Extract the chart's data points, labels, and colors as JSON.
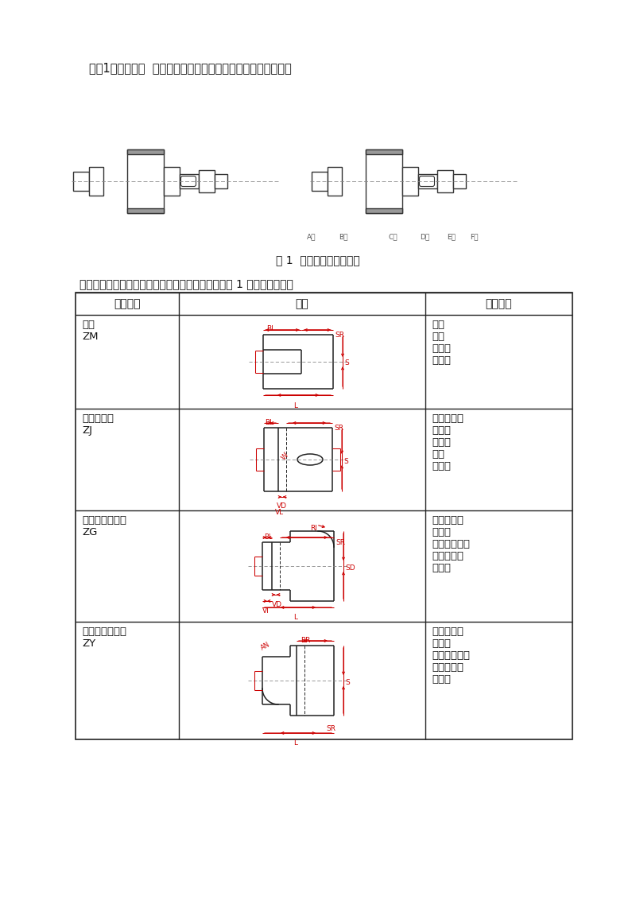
{
  "bg_color": "#ffffff",
  "intro_text": "如图1齿轮传动轴  图形可分解为下面六个单元功能体（形体）。",
  "fig_caption": "图 1  齿轮传动轴形体分解",
  "section_labels": [
    "A段",
    "B段",
    "C段",
    "D段",
    "E段",
    "F段"
  ],
  "table_intro": "综合众多零件的形体特征，对于轴类零件归纳出如表 1 的形体特征图：",
  "table_headers": [
    "形体名称",
    "简图",
    "基本形面"
  ],
  "rows": [
    {
      "name": "柱体\nZM",
      "features": "柱面\n内孔\n倒角面\n退刀槽"
    },
    {
      "name": "带键槽柱体\nZJ",
      "features": "柱面，内孔\n倒角面\n退刀槽\n键槽\n径向孔"
    },
    {
      "name": "带左过渡圆柱体\nZG",
      "features": "柱面，内孔\n倒角面\n退刀槽，键槽\n过渡圆半径\n径向孔"
    },
    {
      "name": "带右过渡圆柱体\nZY",
      "features": "柱面，内孔\n倒角面\n退刀槽，键槽\n过渡圆半径\n径向孔"
    }
  ]
}
